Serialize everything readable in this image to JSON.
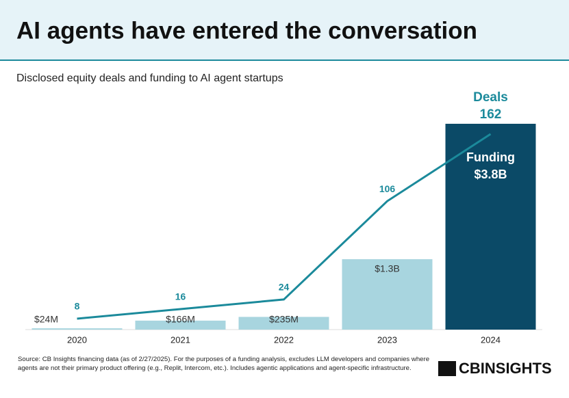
{
  "chart_data": {
    "type": "bar-line",
    "title": "AI agents have entered the conversation",
    "subtitle": "Disclosed equity deals and funding to AI agent startups",
    "categories": [
      "2020",
      "2021",
      "2022",
      "2023",
      "2024"
    ],
    "series": [
      {
        "name": "Funding",
        "type": "bar",
        "color": "#a8d5df",
        "colors": [
          "#a8d5df",
          "#a8d5df",
          "#a8d5df",
          "#a8d5df",
          "#0b4a67"
        ],
        "values": [
          24,
          166,
          235,
          1300,
          3800
        ],
        "value_labels": [
          "$24M",
          "$166M",
          "$235M",
          "$1.3B",
          "$3.8B"
        ]
      },
      {
        "name": "Deals",
        "type": "line",
        "color": "#1b8a9b",
        "values": [
          8,
          16,
          24,
          106,
          162
        ]
      }
    ],
    "source": "Source: CB Insights financing data (as of 2/27/2025). For the purposes of a funding analysis, excludes LLM developers and companies where agents are not their primary product offering (e.g., Replit, Intercom, etc.). Includes agentic applications and agent-specific infrastructure.",
    "logo": "CBINSIGHTS"
  }
}
